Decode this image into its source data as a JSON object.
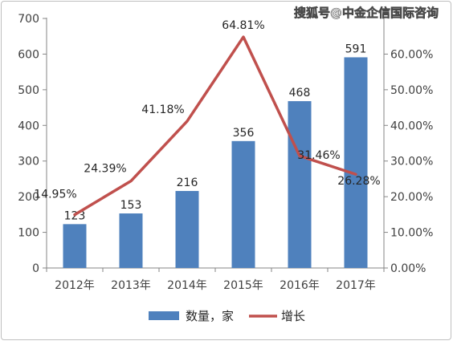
{
  "chart_data": {
    "type": "bar+line",
    "categories": [
      "2012年",
      "2013年",
      "2014年",
      "2015年",
      "2016年",
      "2017年"
    ],
    "series": [
      {
        "name": "数量，家",
        "kind": "bar",
        "axis": "left",
        "color": "#4f81bd",
        "values": [
          123,
          153,
          216,
          356,
          468,
          591
        ],
        "labels": [
          "123",
          "153",
          "216",
          "356",
          "468",
          "591"
        ]
      },
      {
        "name": "增长",
        "kind": "line",
        "axis": "right",
        "color": "#c0504d",
        "values": [
          14.95,
          24.39,
          41.18,
          64.81,
          31.46,
          26.28
        ],
        "labels": [
          "14.95%",
          "24.39%",
          "41.18%",
          "64.81%",
          "31.46%",
          "26.28%"
        ]
      }
    ],
    "y_left": {
      "ylim": [
        0,
        700
      ],
      "ticks": [
        "0",
        "100",
        "200",
        "300",
        "400",
        "500",
        "600",
        "700"
      ]
    },
    "y_right": {
      "ylim": [
        0,
        70
      ],
      "ticks": [
        "0.00%",
        "10.00%",
        "20.00%",
        "30.00%",
        "40.00%",
        "50.00%",
        "60.00%"
      ]
    },
    "grid": false,
    "legend": "bottom"
  },
  "watermark": "搜狐号@中金企信国际咨询"
}
